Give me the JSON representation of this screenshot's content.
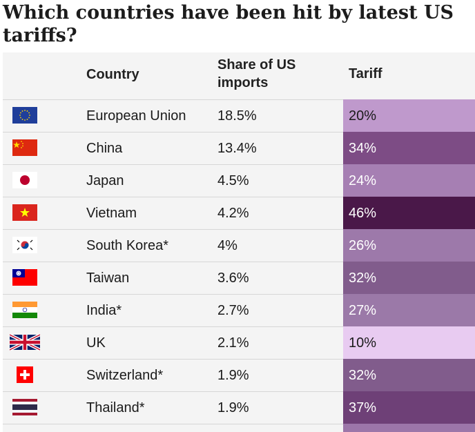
{
  "title": "Which countries have been hit by latest US tariffs?",
  "chart_data": {
    "type": "table",
    "columns": [
      "Country",
      "Share of US imports",
      "Tariff"
    ],
    "rows": [
      {
        "flag": "eu-flag-icon",
        "country": "European Union",
        "share": "18.5%",
        "tariff": "20%",
        "tariff_value": 20,
        "color": "#bf99cc",
        "text_color": "#1a1a1a"
      },
      {
        "flag": "china-flag-icon",
        "country": "China",
        "share": "13.4%",
        "tariff": "34%",
        "tariff_value": 34,
        "color": "#7d4c85",
        "text_color": "#ffffff"
      },
      {
        "flag": "japan-flag-icon",
        "country": "Japan",
        "share": "4.5%",
        "tariff": "24%",
        "tariff_value": 24,
        "color": "#a67fb3",
        "text_color": "#ffffff"
      },
      {
        "flag": "vietnam-flag-icon",
        "country": "Vietnam",
        "share": "4.2%",
        "tariff": "46%",
        "tariff_value": 46,
        "color": "#4a1849",
        "text_color": "#ffffff"
      },
      {
        "flag": "south-korea-flag-icon",
        "country": "South Korea*",
        "share": "4%",
        "tariff": "26%",
        "tariff_value": 26,
        "color": "#9d79aa",
        "text_color": "#ffffff"
      },
      {
        "flag": "taiwan-flag-icon",
        "country": "Taiwan",
        "share": "3.6%",
        "tariff": "32%",
        "tariff_value": 32,
        "color": "#815c8c",
        "text_color": "#ffffff"
      },
      {
        "flag": "india-flag-icon",
        "country": "India*",
        "share": "2.7%",
        "tariff": "27%",
        "tariff_value": 27,
        "color": "#9b79a8",
        "text_color": "#ffffff"
      },
      {
        "flag": "uk-flag-icon",
        "country": "UK",
        "share": "2.1%",
        "tariff": "10%",
        "tariff_value": 10,
        "color": "#e8cbf1",
        "text_color": "#1a1a1a"
      },
      {
        "flag": "switzerland-flag-icon",
        "country": "Switzerland*",
        "share": "1.9%",
        "tariff": "32%",
        "tariff_value": 32,
        "color": "#815c8c",
        "text_color": "#ffffff"
      },
      {
        "flag": "thailand-flag-icon",
        "country": "Thailand*",
        "share": "1.9%",
        "tariff": "37%",
        "tariff_value": 37,
        "color": "#6e4077",
        "text_color": "#ffffff"
      }
    ]
  },
  "tail_color": "#9c76a9"
}
